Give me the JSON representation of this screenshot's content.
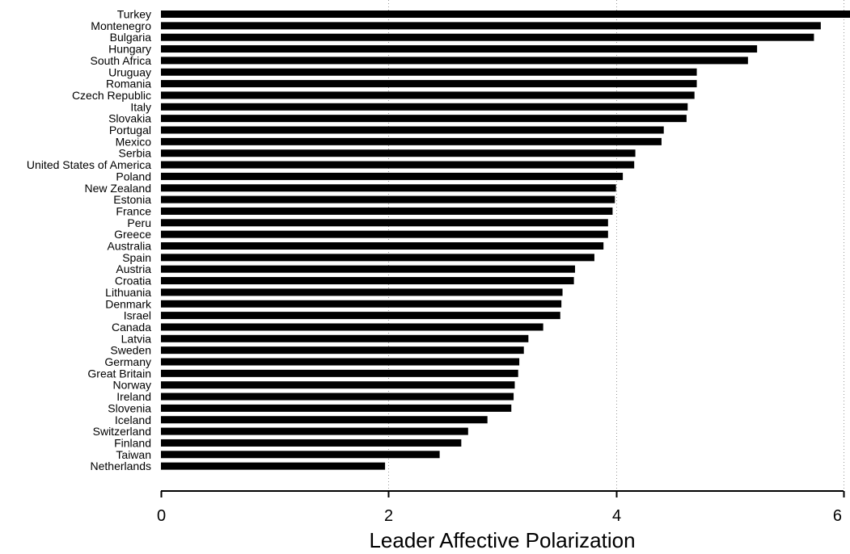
{
  "chart_data": {
    "type": "bar",
    "orientation": "horizontal",
    "title": "",
    "xlabel": "Leader Affective Polarization",
    "ylabel": "",
    "xlim": [
      0,
      6
    ],
    "xticks": [
      0,
      2,
      4,
      6
    ],
    "grid": "vertical dotted at ticks",
    "bar_color": "#000000",
    "categories": [
      "Turkey",
      "Montenegro",
      "Bulgaria",
      "Hungary",
      "South Africa",
      "Uruguay",
      "Romania",
      "Czech Republic",
      "Italy",
      "Slovakia",
      "Portugal",
      "Mexico",
      "Serbia",
      "United States of America",
      "Poland",
      "New Zealand",
      "Estonia",
      "France",
      "Peru",
      "Greece",
      "Australia",
      "Spain",
      "Austria",
      "Croatia",
      "Lithuania",
      "Denmark",
      "Israel",
      "Canada",
      "Latvia",
      "Sweden",
      "Germany",
      "Great Britain",
      "Norway",
      "Ireland",
      "Slovenia",
      "Iceland",
      "Switzerland",
      "Finland",
      "Taiwan",
      "Netherlands"
    ],
    "values": [
      6.06,
      5.8,
      5.74,
      5.24,
      5.16,
      4.71,
      4.71,
      4.69,
      4.63,
      4.62,
      4.42,
      4.4,
      4.17,
      4.16,
      4.06,
      4.0,
      3.99,
      3.97,
      3.93,
      3.93,
      3.89,
      3.81,
      3.64,
      3.63,
      3.53,
      3.52,
      3.51,
      3.36,
      3.23,
      3.19,
      3.15,
      3.14,
      3.11,
      3.1,
      3.08,
      2.87,
      2.7,
      2.64,
      2.45,
      1.97
    ]
  }
}
